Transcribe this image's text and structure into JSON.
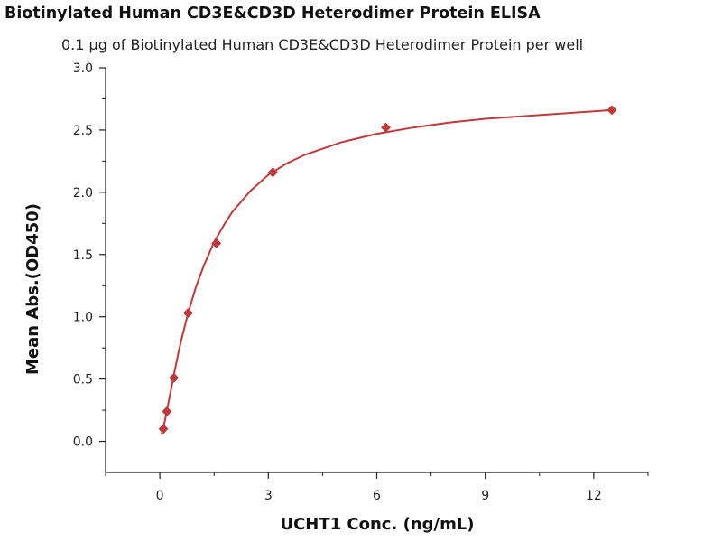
{
  "chart_data": {
    "type": "scatter",
    "title": "Biotinylated Human CD3E&CD3D Heterodimer Protein ELISA",
    "subtitle": "0.1 μg of Biotinylated Human CD3E&CD3D Heterodimer Protein per well",
    "xlabel": "UCHT1 Conc. (ng/mL)",
    "ylabel": "Mean Abs.(OD450)",
    "xlim": [
      -1.5,
      13.5
    ],
    "ylim": [
      -0.25,
      3.0
    ],
    "xticks": [
      0,
      3,
      6,
      9,
      12
    ],
    "xtick_labels": [
      "0",
      "3",
      "6",
      "9",
      "12"
    ],
    "yticks": [
      0.0,
      0.5,
      1.0,
      1.5,
      2.0,
      2.5,
      3.0
    ],
    "ytick_labels": [
      "0.0",
      "0.5",
      "1.0",
      "1.5",
      "2.0",
      "2.5",
      "3.0"
    ],
    "grid": false,
    "series": [
      {
        "marker": "diamond",
        "color": "#C0393B",
        "x": [
          0.098,
          0.195,
          0.391,
          0.781,
          1.563,
          3.125,
          6.25,
          12.5
        ],
        "y": [
          0.1,
          0.24,
          0.51,
          1.03,
          1.59,
          2.16,
          2.52,
          2.66
        ]
      }
    ],
    "fit_curve": {
      "color": "#C0393B",
      "x": [
        0.05,
        0.1,
        0.2,
        0.3,
        0.4,
        0.5,
        0.6,
        0.8,
        1.0,
        1.2,
        1.5,
        1.8,
        2.0,
        2.5,
        3.0,
        3.5,
        4.0,
        5.0,
        6.0,
        7.0,
        8.0,
        9.0,
        10.0,
        11.0,
        12.0,
        12.5
      ],
      "y": [
        0.06,
        0.11,
        0.25,
        0.4,
        0.55,
        0.69,
        0.82,
        1.05,
        1.24,
        1.4,
        1.6,
        1.75,
        1.84,
        2.01,
        2.14,
        2.23,
        2.3,
        2.4,
        2.47,
        2.52,
        2.56,
        2.59,
        2.61,
        2.63,
        2.65,
        2.66
      ]
    }
  }
}
